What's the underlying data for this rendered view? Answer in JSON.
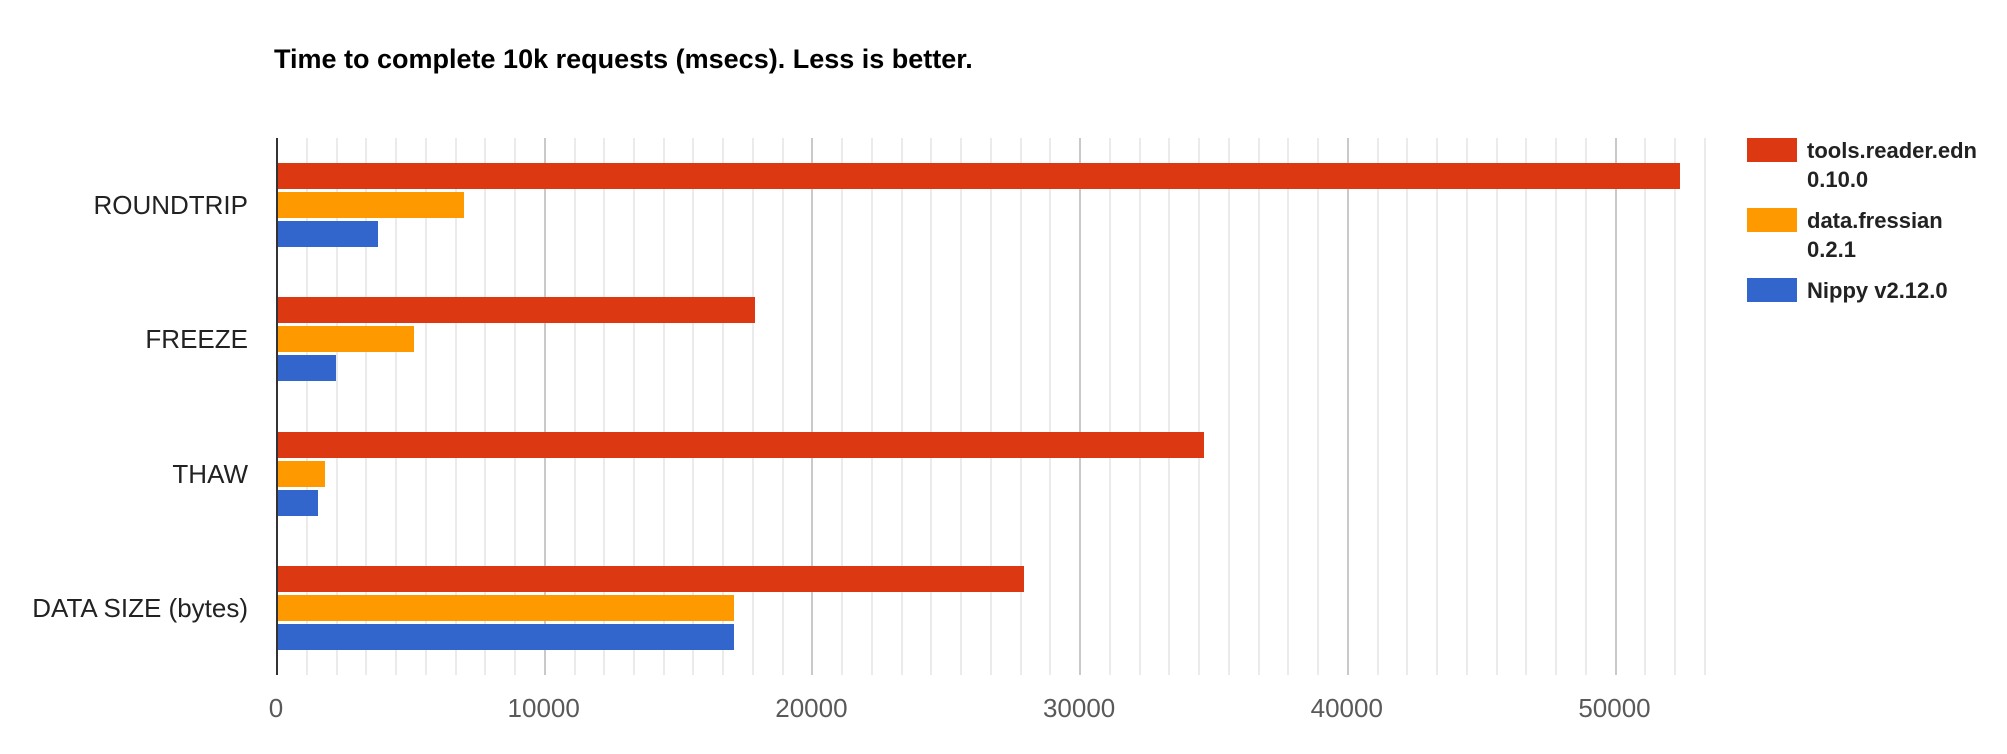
{
  "chart_data": {
    "type": "bar",
    "orientation": "horizontal",
    "title": "Time to complete 10k requests (msecs). Less is better.",
    "categories": [
      "ROUNDTRIP",
      "FREEZE",
      "THAW",
      "DATA SIZE (bytes)"
    ],
    "series": [
      {
        "name": "tools.reader.edn 0.10.0",
        "color": "#dc3912",
        "values": [
          52350,
          17800,
          34570,
          27850
        ]
      },
      {
        "name": "data.fressian 0.2.1",
        "color": "#ff9900",
        "values": [
          6930,
          5060,
          1750,
          17050
        ]
      },
      {
        "name": "Nippy v2.12.0",
        "color": "#3366cc",
        "values": [
          3720,
          2150,
          1500,
          17050
        ]
      }
    ],
    "x_axis": {
      "ticks": [
        0,
        10000,
        20000,
        30000,
        40000,
        50000
      ],
      "tick_labels": [
        "0",
        "10000",
        "20000",
        "30000",
        "40000",
        "50000"
      ],
      "max": 54350,
      "minor_divisions_per_major": 9
    },
    "ylabel": "",
    "xlabel": "",
    "grid": true,
    "legend_position": "right"
  },
  "legend": {
    "items": [
      {
        "line1": "tools.reader.edn",
        "line2": "0.10.0",
        "color": "#dc3912"
      },
      {
        "line1": "data.fressian",
        "line2": "0.2.1",
        "color": "#ff9900"
      },
      {
        "line1": "Nippy v2.12.0",
        "line2": "",
        "color": "#3366cc"
      }
    ]
  },
  "colors": {
    "background": "#ffffff",
    "axis_line": "#333333",
    "gridline_minor": "#ebebeb",
    "gridline_major": "#c9c9c9",
    "tick_text": "#595959",
    "category_text": "#222222",
    "title_text": "#000000"
  }
}
